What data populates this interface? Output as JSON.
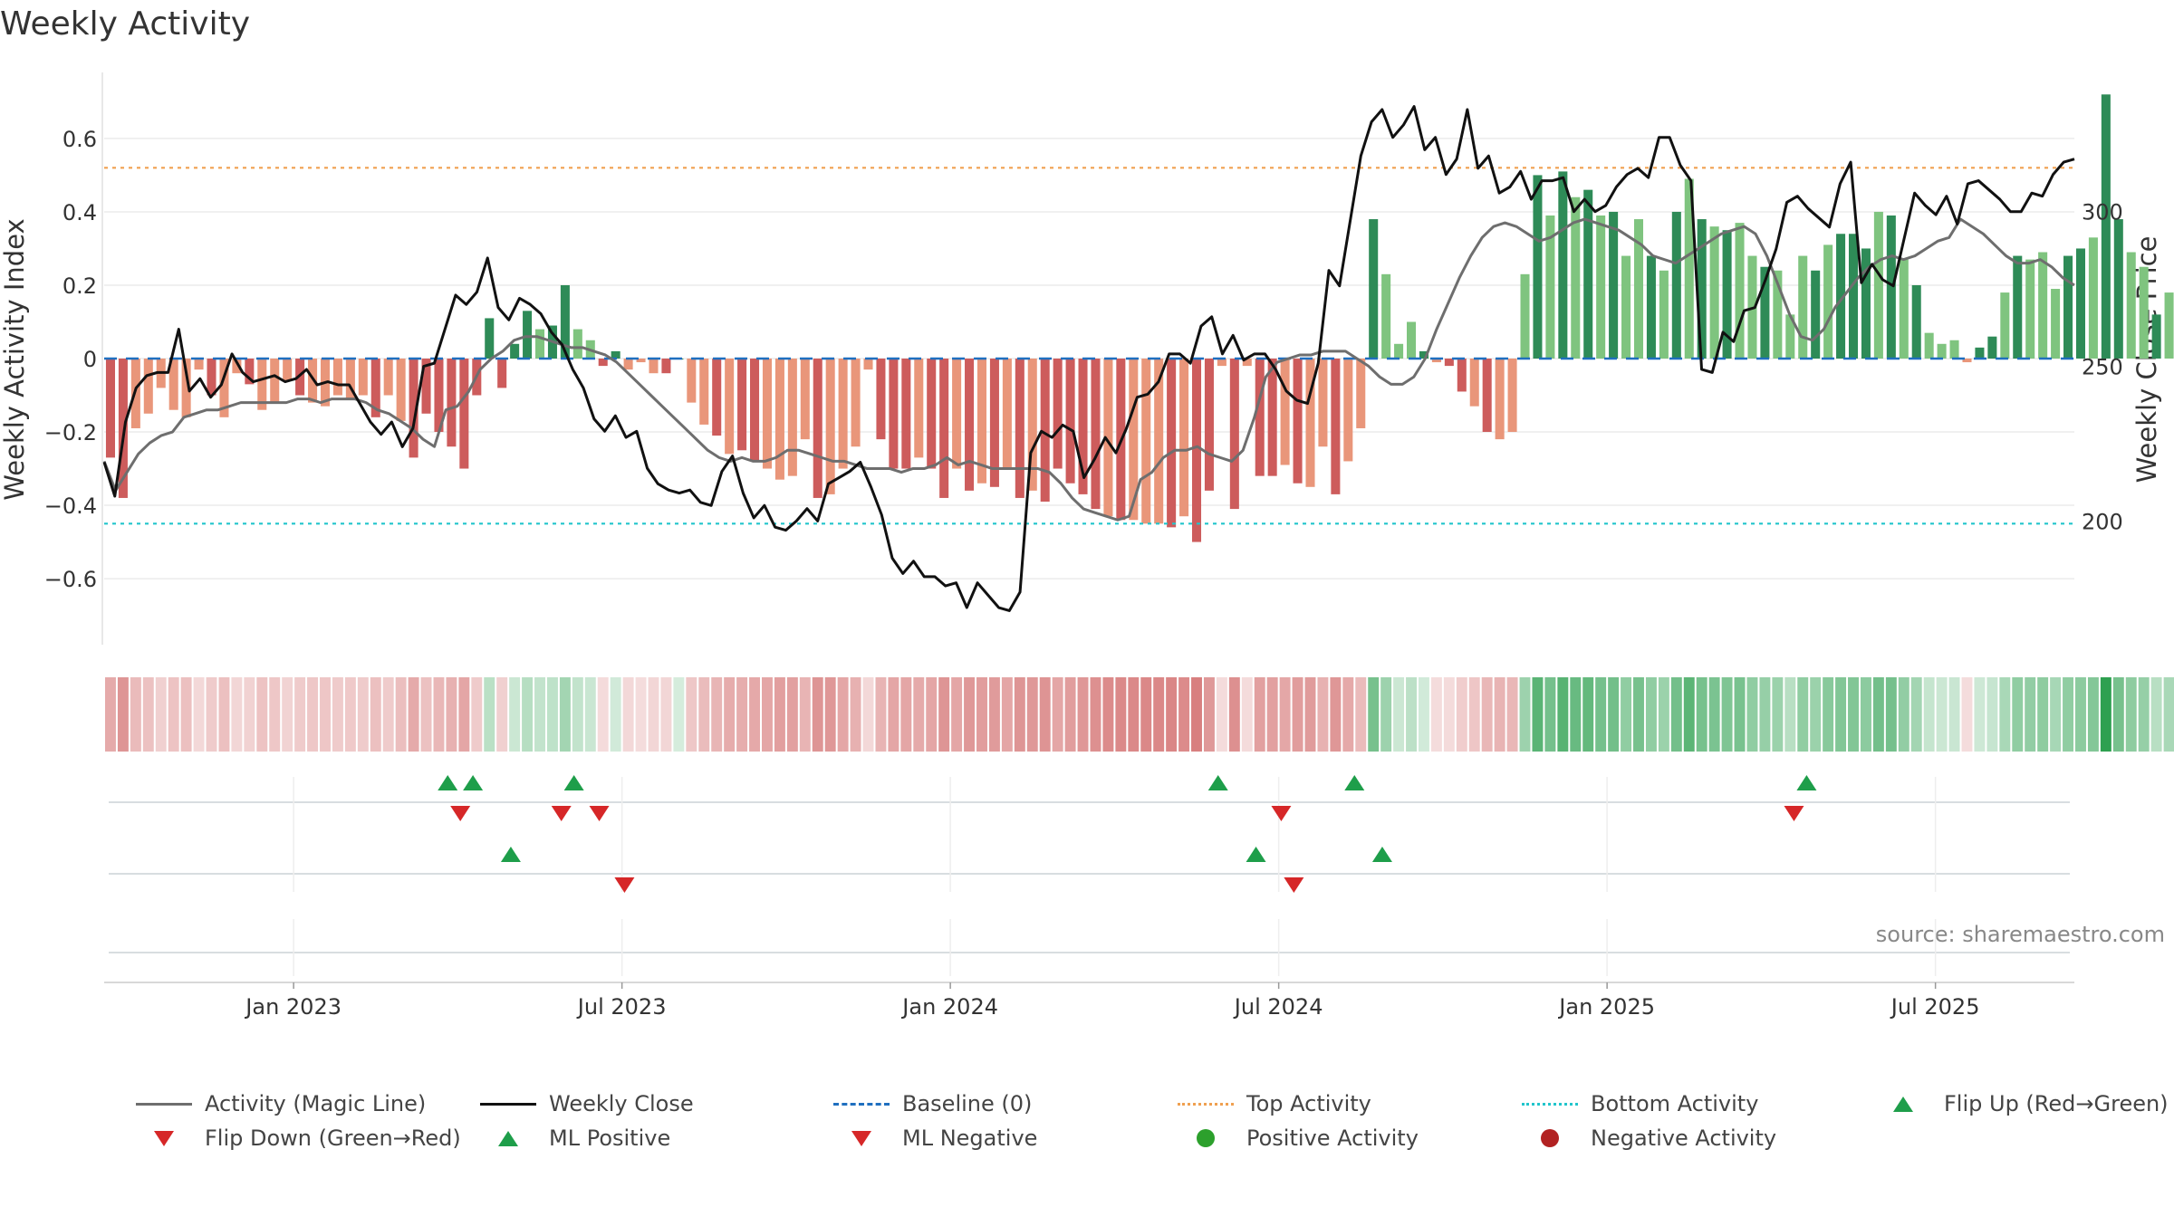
{
  "chart_data": {
    "type": "bar",
    "title": "Weekly Activity",
    "ylabel": "Weekly Activity Index",
    "y2label": "Weekly Close Price",
    "ylim": [
      -0.78,
      0.78
    ],
    "y_ticks": [
      -0.6,
      -0.4,
      -0.2,
      0,
      0.2,
      0.4,
      0.6
    ],
    "y_tick_labels": [
      "−0.6",
      "−0.4",
      "−0.2",
      "0",
      "0.2",
      "0.4",
      "0.6"
    ],
    "y2lim": [
      160,
      345
    ],
    "y2_ticks": [
      200,
      250,
      300
    ],
    "y2_tick_labels": [
      "200",
      "250",
      "300"
    ],
    "x_range_weeks": [
      0,
      156
    ],
    "x_ticks_weeks": [
      15,
      41,
      67,
      93,
      119,
      145
    ],
    "x_tick_labels": [
      "Jan 2023",
      "Jul 2023",
      "Jan 2024",
      "Jul 2024",
      "Jan 2025",
      "Jul 2025"
    ],
    "top_activity": 0.52,
    "bottom_activity": -0.45,
    "baseline": 0,
    "source": "source: sharemaestro.com",
    "colors": {
      "pos_strong": "#2e8b57",
      "pos_light": "#7fc47f",
      "neg_strong": "#cd5c5c",
      "neg_light": "#e9967a",
      "magic_line": "#6e6e6e",
      "close_line": "#111111",
      "baseline": "#1f6fbf",
      "top": "#f0a050",
      "bottom": "#22c5cc",
      "flip_up": "#1e9e4a",
      "flip_down": "#d62728",
      "pos_dot": "#2ca02c",
      "neg_dot": "#b22222"
    },
    "series": [
      {
        "name": "Weekly Activity Index",
        "values": [
          -0.27,
          -0.38,
          -0.19,
          -0.15,
          -0.08,
          -0.14,
          -0.16,
          -0.03,
          -0.1,
          -0.16,
          -0.04,
          -0.07,
          -0.14,
          -0.12,
          -0.06,
          -0.1,
          -0.12,
          -0.13,
          -0.1,
          -0.11,
          -0.1,
          -0.16,
          -0.1,
          -0.17,
          -0.27,
          -0.15,
          -0.2,
          -0.24,
          -0.3,
          -0.1,
          0.11,
          -0.08,
          0.04,
          0.13,
          0.08,
          0.09,
          0.2,
          0.08,
          0.05,
          -0.02,
          0.02,
          -0.03,
          -0.01,
          -0.04,
          -0.04,
          0.0,
          -0.12,
          -0.18,
          -0.21,
          -0.26,
          -0.25,
          -0.28,
          -0.3,
          -0.33,
          -0.32,
          -0.22,
          -0.38,
          -0.37,
          -0.3,
          -0.24,
          -0.03,
          -0.22,
          -0.3,
          -0.3,
          -0.27,
          -0.3,
          -0.38,
          -0.3,
          -0.36,
          -0.34,
          -0.35,
          -0.3,
          -0.38,
          -0.36,
          -0.39,
          -0.3,
          -0.34,
          -0.37,
          -0.41,
          -0.43,
          -0.44,
          -0.44,
          -0.45,
          -0.45,
          -0.46,
          -0.43,
          -0.5,
          -0.36,
          -0.02,
          -0.41,
          -0.02,
          -0.32,
          -0.32,
          -0.29,
          -0.34,
          -0.35,
          -0.24,
          -0.37,
          -0.28,
          -0.19,
          0.38,
          0.23,
          0.04,
          0.1,
          0.02,
          -0.01,
          -0.02,
          -0.09,
          -0.13,
          -0.2,
          -0.22,
          -0.2,
          0.23,
          0.5,
          0.39,
          0.51,
          0.44,
          0.46,
          0.39,
          0.4,
          0.28,
          0.38,
          0.28,
          0.24,
          0.4,
          0.49,
          0.38,
          0.36,
          0.35,
          0.37,
          0.28,
          0.25,
          0.24,
          0.12,
          0.28,
          0.24,
          0.31,
          0.34,
          0.34,
          0.3,
          0.4,
          0.39,
          0.27,
          0.2,
          0.07,
          0.04,
          0.05,
          -0.01,
          0.03,
          0.06,
          0.18,
          0.28,
          0.27,
          0.29,
          0.19,
          0.28,
          0.3,
          0.33,
          0.72,
          0.38,
          0.29,
          0.25,
          0.12,
          0.18,
          0.34,
          0.33,
          0.23,
          0.08,
          0.09
        ],
        "bar_colors": [
          "s",
          "s",
          "l",
          "l",
          "l",
          "l",
          "l",
          "l",
          "s",
          "l",
          "l",
          "s",
          "l",
          "l",
          "l",
          "s",
          "l",
          "l",
          "l",
          "l",
          "l",
          "s",
          "l",
          "l",
          "s",
          "s",
          "s",
          "s",
          "s",
          "s",
          "s",
          "s",
          "s",
          "s",
          "l",
          "s",
          "s",
          "l",
          "l",
          "s",
          "s",
          "l",
          "l",
          "l",
          "s",
          "s",
          "l",
          "l",
          "s",
          "l",
          "s",
          "s",
          "l",
          "l",
          "l",
          "l",
          "s",
          "l",
          "l",
          "l",
          "l",
          "s",
          "s",
          "s",
          "l",
          "s",
          "s",
          "l",
          "s",
          "l",
          "s",
          "l",
          "s",
          "l",
          "s",
          "s",
          "s",
          "s",
          "s",
          "l",
          "s",
          "l",
          "l",
          "l",
          "s",
          "l",
          "s",
          "s",
          "l",
          "s",
          "l",
          "s",
          "s",
          "l",
          "s",
          "l",
          "l",
          "s",
          "l",
          "l",
          "s",
          "l",
          "l",
          "l",
          "s",
          "l",
          "s",
          "s",
          "l",
          "s",
          "l",
          "l",
          "l",
          "s",
          "l",
          "s",
          "l",
          "s",
          "l",
          "s",
          "l",
          "l",
          "s",
          "l",
          "s",
          "l",
          "s",
          "l",
          "s",
          "l",
          "l",
          "s",
          "l",
          "l",
          "l",
          "s",
          "l",
          "s",
          "s",
          "s",
          "l",
          "s",
          "l",
          "s",
          "l",
          "l",
          "l",
          "l",
          "s",
          "s",
          "l",
          "s",
          "l",
          "l",
          "l",
          "s",
          "s",
          "l",
          "s",
          "s",
          "l",
          "l",
          "s",
          "l",
          "s"
        ]
      },
      {
        "name": "Activity (Magic Line)",
        "values": [
          -0.28,
          -0.36,
          -0.31,
          -0.26,
          -0.23,
          -0.21,
          -0.2,
          -0.16,
          -0.15,
          -0.14,
          -0.14,
          -0.13,
          -0.12,
          -0.12,
          -0.12,
          -0.12,
          -0.12,
          -0.11,
          -0.11,
          -0.12,
          -0.11,
          -0.11,
          -0.11,
          -0.12,
          -0.14,
          -0.15,
          -0.17,
          -0.19,
          -0.22,
          -0.24,
          -0.14,
          -0.13,
          -0.09,
          -0.03,
          0.0,
          0.02,
          0.05,
          0.06,
          0.06,
          0.05,
          0.04,
          0.03,
          0.03,
          0.02,
          0.01,
          -0.01,
          -0.04,
          -0.07,
          -0.1,
          -0.13,
          -0.16,
          -0.19,
          -0.22,
          -0.25,
          -0.27,
          -0.28,
          -0.27,
          -0.28,
          -0.28,
          -0.27,
          -0.25,
          -0.25,
          -0.26,
          -0.27,
          -0.28,
          -0.28,
          -0.29,
          -0.3,
          -0.3,
          -0.3,
          -0.31,
          -0.3,
          -0.3,
          -0.29,
          -0.27,
          -0.29,
          -0.28,
          -0.29,
          -0.3,
          -0.3,
          -0.3,
          -0.3,
          -0.3,
          -0.31,
          -0.34,
          -0.38,
          -0.41,
          -0.42,
          -0.43,
          -0.44,
          -0.43,
          -0.33,
          -0.31,
          -0.27,
          -0.25,
          -0.25,
          -0.24,
          -0.26,
          -0.27,
          -0.28,
          -0.25,
          -0.16,
          -0.05,
          -0.01,
          0.0,
          0.01,
          0.01,
          0.02,
          0.02,
          0.02,
          0.0,
          -0.02,
          -0.05,
          -0.07,
          -0.07,
          -0.05,
          0.0,
          0.08,
          0.15,
          0.22,
          0.28,
          0.33,
          0.36,
          0.37,
          0.36,
          0.34,
          0.32,
          0.33,
          0.35,
          0.37,
          0.38,
          0.37,
          0.36,
          0.35,
          0.33,
          0.31,
          0.28,
          0.27,
          0.26,
          0.28,
          0.3,
          0.32,
          0.34,
          0.35,
          0.36,
          0.34,
          0.28,
          0.2,
          0.12,
          0.06,
          0.05,
          0.08,
          0.14,
          0.18,
          0.22,
          0.25,
          0.27,
          0.28,
          0.27,
          0.28,
          0.3,
          0.32,
          0.33,
          0.38,
          0.36,
          0.34,
          0.31,
          0.28,
          0.26,
          0.26,
          0.27,
          0.25,
          0.22,
          0.2
        ]
      },
      {
        "name": "Weekly Close",
        "axis": "right",
        "values": [
          219,
          208,
          232,
          243,
          247,
          248,
          248,
          262,
          242,
          246,
          240,
          244,
          254,
          248,
          245,
          246,
          247,
          245,
          246,
          249,
          244,
          245,
          244,
          244,
          238,
          232,
          228,
          232,
          224,
          230,
          250,
          251,
          262,
          273,
          270,
          274,
          285,
          269,
          265,
          272,
          270,
          267,
          261,
          257,
          249,
          243,
          233,
          229,
          234,
          227,
          229,
          217,
          212,
          210,
          209,
          210,
          206,
          205,
          216,
          221,
          209,
          201,
          205,
          198,
          197,
          200,
          204,
          200,
          212,
          214,
          216,
          219,
          211,
          202,
          188,
          183,
          187,
          182,
          182,
          179,
          180,
          172,
          180,
          176,
          172,
          171,
          177,
          222,
          229,
          227,
          231,
          229,
          214,
          220,
          227,
          222,
          230,
          240,
          241,
          245,
          254,
          254,
          251,
          263,
          266,
          254,
          260,
          252,
          254,
          254,
          249,
          242,
          239,
          238,
          251,
          281,
          276,
          297,
          318,
          329,
          333,
          324,
          328,
          334,
          320,
          324,
          312,
          317,
          333,
          314,
          318,
          306,
          308,
          313,
          304,
          310,
          310,
          311,
          300,
          304,
          300,
          302,
          308,
          312,
          314,
          311,
          324,
          324,
          315,
          310,
          249,
          248,
          261,
          258,
          268,
          269,
          278,
          288,
          303,
          305,
          301,
          298,
          295,
          309,
          316,
          277,
          283,
          278,
          276,
          291,
          306,
          302,
          299,
          305,
          296,
          309,
          310,
          307,
          304,
          300,
          300,
          306,
          305,
          312,
          316,
          317
        ]
      }
    ],
    "activity_strip": {
      "label": "Activity strip",
      "values": [
        -0.27,
        -0.38,
        -0.19,
        -0.15,
        -0.08,
        -0.14,
        -0.16,
        -0.03,
        -0.1,
        -0.16,
        -0.04,
        -0.07,
        -0.14,
        -0.12,
        -0.06,
        -0.1,
        -0.12,
        -0.13,
        -0.1,
        -0.11,
        -0.1,
        -0.16,
        -0.1,
        -0.17,
        -0.27,
        -0.15,
        -0.2,
        -0.24,
        -0.3,
        -0.1,
        0.11,
        -0.08,
        0.04,
        0.13,
        0.08,
        0.09,
        0.2,
        0.08,
        0.05,
        -0.02,
        0.02,
        -0.03,
        -0.01,
        -0.04,
        -0.04,
        0.0,
        -0.12,
        -0.18,
        -0.21,
        -0.26,
        -0.25,
        -0.28,
        -0.3,
        -0.33,
        -0.32,
        -0.22,
        -0.38,
        -0.37,
        -0.3,
        -0.24,
        -0.03,
        -0.22,
        -0.3,
        -0.3,
        -0.27,
        -0.3,
        -0.38,
        -0.3,
        -0.36,
        -0.34,
        -0.35,
        -0.3,
        -0.38,
        -0.36,
        -0.39,
        -0.3,
        -0.34,
        -0.37,
        -0.41,
        -0.43,
        -0.44,
        -0.44,
        -0.45,
        -0.45,
        -0.46,
        -0.43,
        -0.5,
        -0.36,
        -0.02,
        -0.41,
        -0.02,
        -0.32,
        -0.32,
        -0.29,
        -0.34,
        -0.35,
        -0.24,
        -0.37,
        -0.28,
        -0.19,
        0.38,
        0.23,
        0.04,
        0.1,
        0.02,
        -0.01,
        -0.02,
        -0.09,
        -0.13,
        -0.2,
        -0.22,
        -0.2,
        0.23,
        0.5,
        0.39,
        0.51,
        0.44,
        0.46,
        0.39,
        0.4,
        0.28,
        0.38,
        0.28,
        0.24,
        0.4,
        0.49,
        0.38,
        0.36,
        0.35,
        0.37,
        0.28,
        0.25,
        0.24,
        0.12,
        0.28,
        0.24,
        0.31,
        0.34,
        0.34,
        0.3,
        0.4,
        0.39,
        0.27,
        0.2,
        0.07,
        0.04,
        0.05,
        -0.01,
        0.03,
        0.06,
        0.18,
        0.28,
        0.27,
        0.29,
        0.19,
        0.28,
        0.3,
        0.33,
        0.72,
        0.38,
        0.29,
        0.25,
        0.12,
        0.18,
        0.34,
        0.33,
        0.23,
        0.08,
        0.09
      ]
    },
    "flip_up_weeks": [
      27.2,
      29.2,
      37.2,
      88.2,
      99,
      134.8
    ],
    "flip_down_weeks": [
      28.2,
      36.2,
      39.2,
      93.2,
      133.8
    ],
    "ml_positive_weeks": [
      32.2,
      91.2,
      101.2
    ],
    "ml_negative_weeks": [
      41.2,
      94.2
    ],
    "legend": [
      {
        "label": "Activity (Magic Line)",
        "kind": "line",
        "color": "#6e6e6e"
      },
      {
        "label": "Weekly Close",
        "kind": "line",
        "color": "#111111"
      },
      {
        "label": "Baseline (0)",
        "kind": "dash",
        "color": "#1f6fbf"
      },
      {
        "label": "Top Activity",
        "kind": "dot",
        "color": "#f0a050"
      },
      {
        "label": "Bottom Activity",
        "kind": "dot",
        "color": "#22c5cc"
      },
      {
        "label": "Flip Up (Red→Green)",
        "kind": "tri-up",
        "color": "#1e9e4a"
      },
      {
        "label": "Flip Down (Green→Red)",
        "kind": "tri-down",
        "color": "#d62728"
      },
      {
        "label": "ML Positive",
        "kind": "tri-up",
        "color": "#1e9e4a"
      },
      {
        "label": "ML Negative",
        "kind": "tri-down",
        "color": "#d62728"
      },
      {
        "label": "Positive Activity",
        "kind": "circle",
        "color": "#2ca02c"
      },
      {
        "label": "Negative Activity",
        "kind": "circle",
        "color": "#b22222"
      }
    ]
  }
}
